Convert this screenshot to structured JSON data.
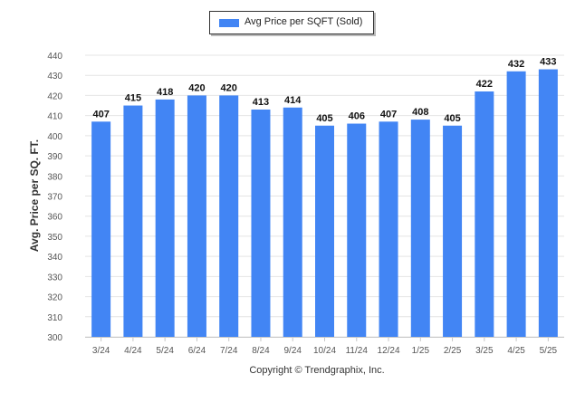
{
  "chart_data": {
    "type": "bar",
    "title": "",
    "xlabel": "",
    "ylabel": "Avg. Price per SQ. FT.",
    "ylim": [
      300,
      440
    ],
    "yticks": [
      300,
      310,
      320,
      330,
      340,
      350,
      360,
      370,
      380,
      390,
      400,
      410,
      420,
      430,
      440
    ],
    "grid": true,
    "legend_position": "top-center",
    "categories": [
      "3/24",
      "4/24",
      "5/24",
      "6/24",
      "7/24",
      "8/24",
      "9/24",
      "10/24",
      "11/24",
      "12/24",
      "1/25",
      "2/25",
      "3/25",
      "4/25",
      "5/25"
    ],
    "series": [
      {
        "name": "Avg Price per SQFT (Sold)",
        "color": "#4285f4",
        "values": [
          407,
          415,
          418,
          420,
          420,
          413,
          414,
          405,
          406,
          407,
          408,
          405,
          422,
          432,
          433
        ]
      }
    ],
    "data_labels": true
  },
  "footer": {
    "copyright": "Copyright © Trendgraphix, Inc."
  },
  "colors": {
    "bar": "#4285f4",
    "grid": "#e4e4e4",
    "axis": "#c8c8c8",
    "tick_text": "#555555",
    "label_text": "#111111"
  }
}
